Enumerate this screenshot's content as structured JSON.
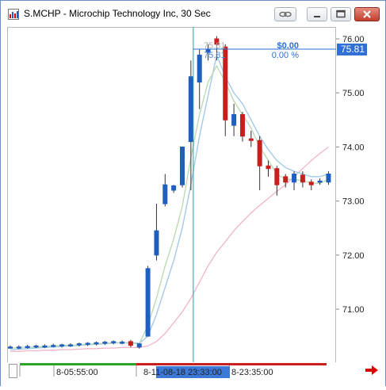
{
  "window": {
    "title": "S.MCHP - Microchip Technology Inc, 30 Sec",
    "icon": "chart-app-icon",
    "buttons": [
      "link-icon",
      "minimize-icon",
      "maximize-icon",
      "close-icon"
    ]
  },
  "header_overlay": {
    "hover_price": "75.81",
    "hover_price2": "75.81",
    "pnl": "$0.00",
    "pct": "0.00 %"
  },
  "colors": {
    "up": "#1f5fbf",
    "down": "#c81e1e",
    "ma_fast": "#b8d8b0",
    "ma_mid": "#9cc7e8",
    "ma_slow": "#f0b4c8",
    "crosshair": "#2a9d9d",
    "price_label_bg": "#2f6fd6",
    "time_highlight_bg": "#3b78d8",
    "nav_arrow": "#e00000"
  },
  "chart_data": {
    "type": "candlestick",
    "ylim": [
      70.0,
      76.2
    ],
    "y_ticks": [
      "76.00",
      "75.00",
      "74.00",
      "73.00",
      "72.00",
      "71.00"
    ],
    "last_price_label": "75.81",
    "x_labels": [
      "8-05:55:00",
      "8-11-08-18 23:33:00",
      "8-23:35:00"
    ],
    "crosshair_time": "11-08-18 23:33:00",
    "candles": [
      {
        "o": 70.3,
        "h": 70.33,
        "l": 70.27,
        "c": 70.3
      },
      {
        "o": 70.29,
        "h": 70.33,
        "l": 70.26,
        "c": 70.3
      },
      {
        "o": 70.3,
        "h": 70.34,
        "l": 70.27,
        "c": 70.31
      },
      {
        "o": 70.31,
        "h": 70.34,
        "l": 70.28,
        "c": 70.32
      },
      {
        "o": 70.31,
        "h": 70.35,
        "l": 70.28,
        "c": 70.32
      },
      {
        "o": 70.32,
        "h": 70.36,
        "l": 70.29,
        "c": 70.33
      },
      {
        "o": 70.32,
        "h": 70.36,
        "l": 70.29,
        "c": 70.34
      },
      {
        "o": 70.33,
        "h": 70.37,
        "l": 70.3,
        "c": 70.34
      },
      {
        "o": 70.34,
        "h": 70.38,
        "l": 70.31,
        "c": 70.36
      },
      {
        "o": 70.35,
        "h": 70.39,
        "l": 70.32,
        "c": 70.37
      },
      {
        "o": 70.36,
        "h": 70.4,
        "l": 70.33,
        "c": 70.38
      },
      {
        "o": 70.37,
        "h": 70.41,
        "l": 70.34,
        "c": 70.39
      },
      {
        "o": 70.38,
        "h": 70.42,
        "l": 70.35,
        "c": 70.4
      },
      {
        "o": 70.38,
        "h": 70.42,
        "l": 70.35,
        "c": 70.39
      },
      {
        "o": 70.4,
        "h": 70.43,
        "l": 70.3,
        "c": 70.33
      },
      {
        "o": 70.3,
        "h": 70.36,
        "l": 70.27,
        "c": 70.36
      },
      {
        "o": 70.5,
        "h": 71.8,
        "l": 70.5,
        "c": 71.75
      },
      {
        "o": 72.0,
        "h": 72.95,
        "l": 71.9,
        "c": 72.45
      },
      {
        "o": 72.95,
        "h": 73.5,
        "l": 72.9,
        "c": 73.3
      },
      {
        "o": 73.2,
        "h": 73.3,
        "l": 73.15,
        "c": 73.28
      },
      {
        "o": 73.3,
        "h": 74.0,
        "l": 73.25,
        "c": 74.0
      },
      {
        "o": 74.1,
        "h": 75.6,
        "l": 73.2,
        "c": 75.3
      },
      {
        "o": 75.2,
        "h": 75.8,
        "l": 74.7,
        "c": 75.7
      },
      {
        "o": 75.75,
        "h": 75.9,
        "l": 75.6,
        "c": 75.81
      },
      {
        "o": 76.0,
        "h": 76.05,
        "l": 75.6,
        "c": 75.9
      },
      {
        "o": 75.85,
        "h": 75.9,
        "l": 74.2,
        "c": 74.5
      },
      {
        "o": 74.4,
        "h": 74.8,
        "l": 74.2,
        "c": 74.6
      },
      {
        "o": 74.6,
        "h": 74.65,
        "l": 74.1,
        "c": 74.2
      },
      {
        "o": 74.15,
        "h": 74.3,
        "l": 74.0,
        "c": 74.12
      },
      {
        "o": 74.12,
        "h": 74.2,
        "l": 73.2,
        "c": 73.65
      },
      {
        "o": 73.65,
        "h": 73.75,
        "l": 73.45,
        "c": 73.6
      },
      {
        "o": 73.6,
        "h": 73.65,
        "l": 73.1,
        "c": 73.3
      },
      {
        "o": 73.45,
        "h": 73.5,
        "l": 73.25,
        "c": 73.35
      },
      {
        "o": 73.35,
        "h": 73.55,
        "l": 73.2,
        "c": 73.5
      },
      {
        "o": 73.48,
        "h": 73.55,
        "l": 73.25,
        "c": 73.35
      },
      {
        "o": 73.35,
        "h": 73.4,
        "l": 73.2,
        "c": 73.3
      },
      {
        "o": 73.35,
        "h": 73.42,
        "l": 73.3,
        "c": 73.37
      },
      {
        "o": 73.35,
        "h": 73.55,
        "l": 73.3,
        "c": 73.5
      }
    ],
    "ma_fast": [
      70.28,
      70.29,
      70.3,
      70.3,
      70.31,
      70.32,
      70.33,
      70.33,
      70.34,
      70.35,
      70.36,
      70.37,
      70.38,
      70.38,
      70.37,
      70.36,
      70.7,
      71.2,
      71.8,
      72.3,
      72.9,
      73.8,
      74.6,
      75.2,
      75.5,
      75.2,
      74.85,
      74.6,
      74.35,
      74.0,
      73.75,
      73.5,
      73.4,
      73.4,
      73.38,
      73.33,
      73.33,
      73.4
    ],
    "ma_mid": [
      70.25,
      70.26,
      70.27,
      70.28,
      70.29,
      70.3,
      70.31,
      70.32,
      70.33,
      70.34,
      70.35,
      70.36,
      70.37,
      70.38,
      70.38,
      70.37,
      70.5,
      70.9,
      71.4,
      71.9,
      72.5,
      73.3,
      74.2,
      74.95,
      75.7,
      75.3,
      75.0,
      74.8,
      74.5,
      74.2,
      73.95,
      73.75,
      73.62,
      73.55,
      73.5,
      73.45,
      73.45,
      73.5
    ],
    "ma_slow": [
      70.22,
      70.22,
      70.23,
      70.23,
      70.24,
      70.24,
      70.25,
      70.25,
      70.26,
      70.27,
      70.27,
      70.28,
      70.28,
      70.29,
      70.29,
      70.29,
      70.32,
      70.4,
      70.55,
      70.75,
      70.95,
      71.2,
      71.5,
      71.8,
      72.05,
      72.25,
      72.45,
      72.62,
      72.78,
      72.92,
      73.05,
      73.18,
      73.3,
      73.45,
      73.6,
      73.75,
      73.88,
      74.0
    ]
  }
}
